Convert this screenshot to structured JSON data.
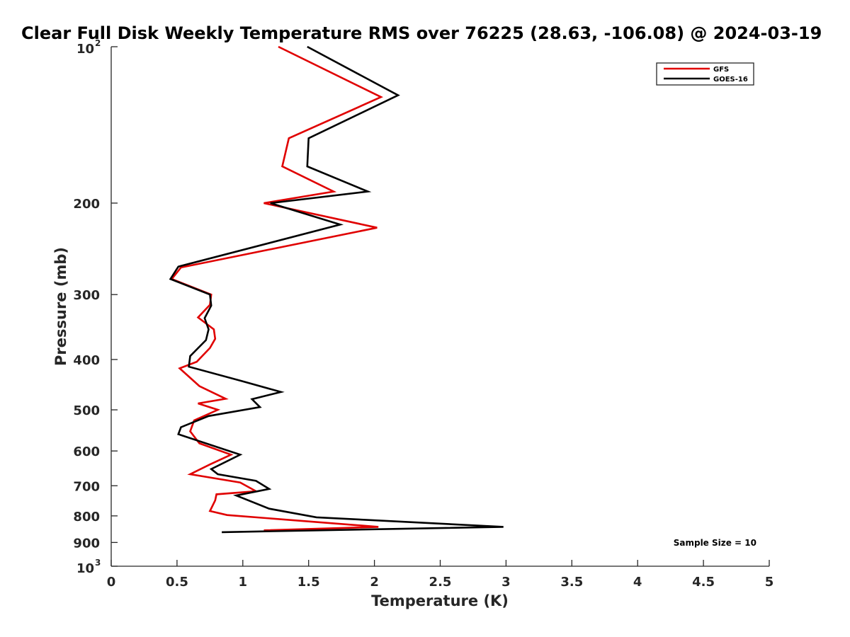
{
  "chart_data": {
    "type": "line",
    "title": "Clear Full Disk Weekly Temperature RMS over 76225 (28.63, -106.08) @ 2024-03-19",
    "xlabel": "Temperature (K)",
    "ylabel": "Pressure (mb)",
    "xlim": [
      0,
      5
    ],
    "ylim": [
      100,
      1000
    ],
    "yscale": "log",
    "y_reversed": true,
    "grid": false,
    "legend_position": "top-right",
    "x_ticks": [
      "0",
      "0.5",
      "1",
      "1.5",
      "2",
      "2.5",
      "3",
      "3.5",
      "4",
      "4.5",
      "5"
    ],
    "y_ticks": [
      {
        "value": 100,
        "base": "10",
        "exp": "2"
      },
      {
        "value": 200,
        "label": "200"
      },
      {
        "value": 300,
        "label": "300"
      },
      {
        "value": 400,
        "label": "400"
      },
      {
        "value": 500,
        "label": "500"
      },
      {
        "value": 600,
        "label": "600"
      },
      {
        "value": 700,
        "label": "700"
      },
      {
        "value": 800,
        "label": "800"
      },
      {
        "value": 900,
        "label": "900"
      },
      {
        "value": 1000,
        "base": "10",
        "exp": "3"
      }
    ],
    "annotation": "Sample Size = 10",
    "series": [
      {
        "name": "GFS",
        "color": "#e00000",
        "points": [
          [
            1.27,
            100
          ],
          [
            2.05,
            125
          ],
          [
            1.35,
            150
          ],
          [
            1.3,
            170
          ],
          [
            1.69,
            190
          ],
          [
            1.16,
            200
          ],
          [
            2.02,
            223
          ],
          [
            0.53,
            266
          ],
          [
            0.46,
            280
          ],
          [
            0.76,
            300
          ],
          [
            0.75,
            314
          ],
          [
            0.66,
            332
          ],
          [
            0.78,
            350
          ],
          [
            0.79,
            365
          ],
          [
            0.75,
            380
          ],
          [
            0.65,
            404
          ],
          [
            0.52,
            416
          ],
          [
            0.67,
            450
          ],
          [
            0.87,
            476
          ],
          [
            0.66,
            486
          ],
          [
            0.81,
            500
          ],
          [
            0.63,
            524
          ],
          [
            0.6,
            550
          ],
          [
            0.67,
            580
          ],
          [
            0.91,
            610
          ],
          [
            0.75,
            637
          ],
          [
            0.6,
            665
          ],
          [
            0.98,
            690
          ],
          [
            1.1,
            717
          ],
          [
            0.8,
            727
          ],
          [
            0.79,
            747
          ],
          [
            0.75,
            783
          ],
          [
            0.88,
            797
          ],
          [
            2.03,
            840
          ],
          [
            1.16,
            853
          ]
        ]
      },
      {
        "name": "GOES-16",
        "color": "#000000",
        "points": [
          [
            1.49,
            100
          ],
          [
            2.18,
            124
          ],
          [
            1.5,
            150
          ],
          [
            1.49,
            170
          ],
          [
            1.95,
            190
          ],
          [
            1.21,
            200
          ],
          [
            1.74,
            220
          ],
          [
            0.51,
            265
          ],
          [
            0.45,
            280
          ],
          [
            0.75,
            300
          ],
          [
            0.76,
            315
          ],
          [
            0.71,
            333
          ],
          [
            0.74,
            350
          ],
          [
            0.72,
            367
          ],
          [
            0.6,
            394
          ],
          [
            0.59,
            413
          ],
          [
            0.99,
            440
          ],
          [
            1.29,
            462
          ],
          [
            1.07,
            477
          ],
          [
            1.13,
            494
          ],
          [
            0.74,
            514
          ],
          [
            0.53,
            540
          ],
          [
            0.51,
            557
          ],
          [
            0.98,
            610
          ],
          [
            0.76,
            650
          ],
          [
            0.81,
            665
          ],
          [
            1.1,
            685
          ],
          [
            1.2,
            710
          ],
          [
            0.95,
            731
          ],
          [
            1.2,
            775
          ],
          [
            1.56,
            805
          ],
          [
            2.98,
            840
          ],
          [
            0.84,
            860
          ]
        ]
      }
    ]
  }
}
